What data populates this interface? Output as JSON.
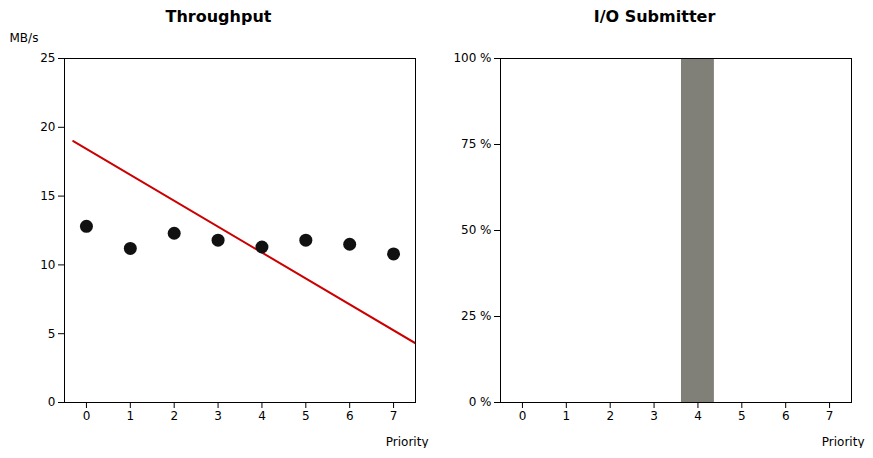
{
  "chart_data": [
    {
      "type": "scatter",
      "title": "Throughput",
      "x_label": "Priority",
      "y_label": "MB/s",
      "series": [
        {
          "type": "line",
          "color": "#cc0000",
          "x": [
            -0.3,
            7.5
          ],
          "values": [
            19.0,
            4.3
          ]
        },
        {
          "type": "scatter",
          "color": "#111111",
          "x": [
            0,
            1,
            2,
            3,
            4,
            5,
            6,
            7
          ],
          "values": [
            12.8,
            11.2,
            12.3,
            11.8,
            11.3,
            11.8,
            11.5,
            10.8
          ]
        }
      ],
      "xlim": [
        -0.5,
        7.5
      ],
      "xticks": [
        0,
        1,
        2,
        3,
        4,
        5,
        6,
        7
      ],
      "ylim": [
        0,
        25
      ],
      "yticks": [
        0,
        5,
        10,
        15,
        20,
        25
      ],
      "grid": false
    },
    {
      "type": "bar",
      "title": "I/O Submitter",
      "x_label": "Priority",
      "x": [
        4
      ],
      "values": [
        100
      ],
      "color": "#808078",
      "xlim": [
        -0.5,
        7.5
      ],
      "xticks": [
        0,
        1,
        2,
        3,
        4,
        5,
        6,
        7
      ],
      "ylim": [
        0,
        100
      ],
      "yticks": [
        {
          "value": 0,
          "label": "0 %"
        },
        {
          "value": 25,
          "label": "25 %"
        },
        {
          "value": 50,
          "label": "50 %"
        },
        {
          "value": 75,
          "label": "75 %"
        },
        {
          "value": 100,
          "label": "100 %"
        }
      ],
      "grid": false
    }
  ]
}
